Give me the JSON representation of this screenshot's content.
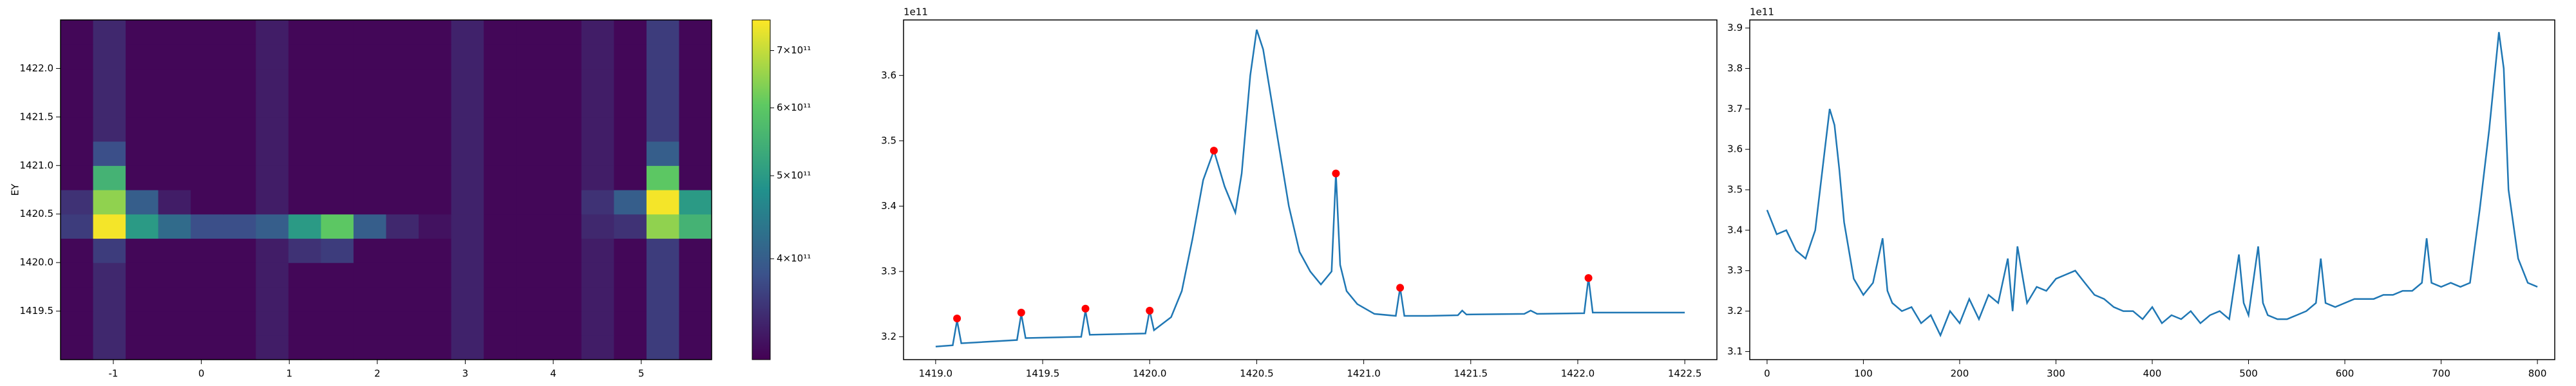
{
  "chart_data": [
    {
      "type": "heatmap",
      "ylabel": "EY",
      "xlim": [
        -1.6,
        5.8
      ],
      "ylim": [
        1419.0,
        1422.5
      ],
      "xticks": [
        -1,
        0,
        1,
        2,
        3,
        4,
        5
      ],
      "yticks": [
        1419.5,
        {
          "value": 1420,
          "label": "1420.0"
        },
        1420.5,
        {
          "value": 1421,
          "label": "1421.0"
        },
        1421.5,
        {
          "value": 1422,
          "label": "1422.0"
        }
      ],
      "cmap": "viridis",
      "colorbar": {
        "log": true,
        "lim": [
          305000000000.0,
          760000000000.0
        ],
        "ticks": [
          {
            "value": 400000000000.0,
            "label": "4×10¹¹"
          },
          {
            "value": 500000000000.0,
            "label": "5×10¹¹"
          },
          {
            "value": 600000000000.0,
            "label": "6×10¹¹"
          },
          {
            "value": 700000000000.0,
            "label": "7×10¹¹"
          }
        ]
      },
      "z": [
        [
          310000000000.0,
          340000000000.0,
          310000000000.0,
          310000000000.0,
          310000000000.0,
          310000000000.0,
          330000000000.0,
          310000000000.0,
          310000000000.0,
          310000000000.0,
          310000000000.0,
          310000000000.0,
          335000000000.0,
          310000000000.0,
          310000000000.0,
          310000000000.0,
          330000000000.0,
          310000000000.0,
          360000000000.0,
          310000000000.0
        ],
        [
          310000000000.0,
          340000000000.0,
          310000000000.0,
          310000000000.0,
          310000000000.0,
          310000000000.0,
          330000000000.0,
          310000000000.0,
          310000000000.0,
          310000000000.0,
          310000000000.0,
          310000000000.0,
          335000000000.0,
          310000000000.0,
          310000000000.0,
          310000000000.0,
          330000000000.0,
          310000000000.0,
          360000000000.0,
          310000000000.0
        ],
        [
          310000000000.0,
          340000000000.0,
          310000000000.0,
          310000000000.0,
          310000000000.0,
          310000000000.0,
          330000000000.0,
          310000000000.0,
          310000000000.0,
          310000000000.0,
          310000000000.0,
          310000000000.0,
          335000000000.0,
          310000000000.0,
          310000000000.0,
          310000000000.0,
          330000000000.0,
          310000000000.0,
          360000000000.0,
          310000000000.0
        ],
        [
          310000000000.0,
          340000000000.0,
          310000000000.0,
          310000000000.0,
          310000000000.0,
          310000000000.0,
          330000000000.0,
          310000000000.0,
          310000000000.0,
          310000000000.0,
          310000000000.0,
          310000000000.0,
          335000000000.0,
          310000000000.0,
          310000000000.0,
          310000000000.0,
          330000000000.0,
          310000000000.0,
          360000000000.0,
          310000000000.0
        ],
        [
          310000000000.0,
          360000000000.0,
          310000000000.0,
          310000000000.0,
          310000000000.0,
          310000000000.0,
          330000000000.0,
          350000000000.0,
          360000000000.0,
          310000000000.0,
          310000000000.0,
          310000000000.0,
          335000000000.0,
          310000000000.0,
          310000000000.0,
          310000000000.0,
          330000000000.0,
          310000000000.0,
          360000000000.0,
          310000000000.0
        ],
        [
          360000000000.0,
          750000000000.0,
          500000000000.0,
          420000000000.0,
          380000000000.0,
          380000000000.0,
          400000000000.0,
          500000000000.0,
          600000000000.0,
          400000000000.0,
          340000000000.0,
          320000000000.0,
          335000000000.0,
          310000000000.0,
          310000000000.0,
          310000000000.0,
          340000000000.0,
          350000000000.0,
          650000000000.0,
          550000000000.0
        ],
        [
          350000000000.0,
          650000000000.0,
          400000000000.0,
          330000000000.0,
          310000000000.0,
          310000000000.0,
          330000000000.0,
          310000000000.0,
          310000000000.0,
          310000000000.0,
          310000000000.0,
          310000000000.0,
          335000000000.0,
          310000000000.0,
          310000000000.0,
          310000000000.0,
          350000000000.0,
          400000000000.0,
          750000000000.0,
          500000000000.0
        ],
        [
          310000000000.0,
          550000000000.0,
          310000000000.0,
          310000000000.0,
          310000000000.0,
          310000000000.0,
          330000000000.0,
          310000000000.0,
          310000000000.0,
          310000000000.0,
          310000000000.0,
          310000000000.0,
          335000000000.0,
          310000000000.0,
          310000000000.0,
          310000000000.0,
          330000000000.0,
          310000000000.0,
          600000000000.0,
          310000000000.0
        ],
        [
          310000000000.0,
          380000000000.0,
          310000000000.0,
          310000000000.0,
          310000000000.0,
          310000000000.0,
          330000000000.0,
          310000000000.0,
          310000000000.0,
          310000000000.0,
          310000000000.0,
          310000000000.0,
          335000000000.0,
          310000000000.0,
          310000000000.0,
          310000000000.0,
          330000000000.0,
          310000000000.0,
          400000000000.0,
          310000000000.0
        ],
        [
          310000000000.0,
          340000000000.0,
          310000000000.0,
          310000000000.0,
          310000000000.0,
          310000000000.0,
          330000000000.0,
          310000000000.0,
          310000000000.0,
          310000000000.0,
          310000000000.0,
          310000000000.0,
          335000000000.0,
          310000000000.0,
          310000000000.0,
          310000000000.0,
          330000000000.0,
          310000000000.0,
          360000000000.0,
          310000000000.0
        ],
        [
          310000000000.0,
          340000000000.0,
          310000000000.0,
          310000000000.0,
          310000000000.0,
          310000000000.0,
          330000000000.0,
          310000000000.0,
          310000000000.0,
          310000000000.0,
          310000000000.0,
          310000000000.0,
          335000000000.0,
          310000000000.0,
          310000000000.0,
          310000000000.0,
          330000000000.0,
          310000000000.0,
          360000000000.0,
          310000000000.0
        ],
        [
          310000000000.0,
          340000000000.0,
          310000000000.0,
          310000000000.0,
          310000000000.0,
          310000000000.0,
          330000000000.0,
          310000000000.0,
          310000000000.0,
          310000000000.0,
          310000000000.0,
          310000000000.0,
          335000000000.0,
          310000000000.0,
          310000000000.0,
          310000000000.0,
          330000000000.0,
          310000000000.0,
          360000000000.0,
          310000000000.0
        ],
        [
          310000000000.0,
          340000000000.0,
          310000000000.0,
          310000000000.0,
          310000000000.0,
          310000000000.0,
          330000000000.0,
          310000000000.0,
          310000000000.0,
          310000000000.0,
          310000000000.0,
          310000000000.0,
          335000000000.0,
          310000000000.0,
          310000000000.0,
          310000000000.0,
          330000000000.0,
          310000000000.0,
          360000000000.0,
          310000000000.0
        ],
        [
          310000000000.0,
          340000000000.0,
          310000000000.0,
          310000000000.0,
          310000000000.0,
          310000000000.0,
          330000000000.0,
          310000000000.0,
          310000000000.0,
          310000000000.0,
          310000000000.0,
          310000000000.0,
          335000000000.0,
          310000000000.0,
          310000000000.0,
          310000000000.0,
          330000000000.0,
          310000000000.0,
          360000000000.0,
          310000000000.0
        ]
      ]
    },
    {
      "type": "line",
      "offset_label": "1e11",
      "xlim": [
        1418.85,
        1422.65
      ],
      "ylim": [
        3.165,
        3.685
      ],
      "xticks": [
        {
          "value": 1419,
          "label": "1419.0"
        },
        1419.5,
        {
          "value": 1420,
          "label": "1420.0"
        },
        1420.5,
        {
          "value": 1421,
          "label": "1421.0"
        },
        1421.5,
        {
          "value": 1422,
          "label": "1422.0"
        },
        1422.5
      ],
      "yticks": [
        3.2,
        3.3,
        3.4,
        3.5,
        3.6
      ],
      "x": [
        1419.0,
        1419.08,
        1419.1,
        1419.12,
        1419.38,
        1419.4,
        1419.42,
        1419.68,
        1419.7,
        1419.72,
        1419.98,
        1420.0,
        1420.02,
        1420.1,
        1420.15,
        1420.2,
        1420.25,
        1420.3,
        1420.35,
        1420.4,
        1420.43,
        1420.47,
        1420.5,
        1420.53,
        1420.57,
        1420.6,
        1420.65,
        1420.7,
        1420.75,
        1420.8,
        1420.85,
        1420.87,
        1420.89,
        1420.92,
        1420.97,
        1421.05,
        1421.15,
        1421.17,
        1421.19,
        1421.3,
        1421.44,
        1421.46,
        1421.48,
        1421.75,
        1421.78,
        1421.81,
        1422.03,
        1422.05,
        1422.07,
        1422.5
      ],
      "series": [
        {
          "color": "#1f77b4",
          "values": [
            3.185,
            3.187,
            3.225,
            3.19,
            3.195,
            3.235,
            3.198,
            3.2,
            3.24,
            3.203,
            3.205,
            3.24,
            3.21,
            3.23,
            3.27,
            3.35,
            3.44,
            3.485,
            3.43,
            3.39,
            3.45,
            3.6,
            3.67,
            3.64,
            3.56,
            3.5,
            3.4,
            3.33,
            3.3,
            3.28,
            3.3,
            3.45,
            3.31,
            3.27,
            3.25,
            3.235,
            3.232,
            3.275,
            3.232,
            3.232,
            3.233,
            3.24,
            3.234,
            3.235,
            3.24,
            3.235,
            3.236,
            3.29,
            3.237,
            3.237
          ]
        }
      ],
      "peaks": {
        "color": "#ff0000",
        "x": [
          1419.1,
          1419.4,
          1419.7,
          1420.0,
          1420.3,
          1420.87,
          1421.17,
          1422.05
        ],
        "values": [
          3.228,
          3.237,
          3.243,
          3.24,
          3.485,
          3.45,
          3.275,
          3.29
        ]
      }
    },
    {
      "type": "line",
      "offset_label": "1e11",
      "xlim": [
        -18,
        818
      ],
      "ylim": [
        3.08,
        3.92
      ],
      "xticks": [
        0,
        100,
        200,
        300,
        400,
        500,
        600,
        700,
        800
      ],
      "yticks": [
        3.1,
        3.2,
        3.3,
        3.4,
        3.5,
        3.6,
        3.7,
        3.8,
        3.9
      ],
      "x": [
        0,
        10,
        20,
        30,
        40,
        50,
        60,
        65,
        70,
        75,
        80,
        90,
        100,
        110,
        120,
        125,
        130,
        140,
        150,
        160,
        170,
        180,
        190,
        200,
        210,
        220,
        230,
        240,
        250,
        255,
        260,
        270,
        280,
        290,
        300,
        310,
        320,
        330,
        340,
        350,
        360,
        370,
        380,
        390,
        400,
        410,
        420,
        430,
        440,
        450,
        460,
        470,
        480,
        490,
        495,
        500,
        510,
        515,
        520,
        530,
        540,
        550,
        560,
        570,
        575,
        580,
        590,
        600,
        610,
        620,
        630,
        640,
        650,
        660,
        670,
        680,
        685,
        690,
        700,
        710,
        720,
        730,
        740,
        750,
        760,
        765,
        770,
        780,
        790,
        800
      ],
      "series": [
        {
          "color": "#1f77b4",
          "values": [
            3.45,
            3.39,
            3.4,
            3.35,
            3.33,
            3.4,
            3.6,
            3.7,
            3.66,
            3.55,
            3.42,
            3.28,
            3.24,
            3.27,
            3.38,
            3.25,
            3.22,
            3.2,
            3.21,
            3.17,
            3.19,
            3.14,
            3.2,
            3.17,
            3.23,
            3.18,
            3.24,
            3.22,
            3.33,
            3.2,
            3.36,
            3.22,
            3.26,
            3.25,
            3.28,
            3.29,
            3.3,
            3.27,
            3.24,
            3.23,
            3.21,
            3.2,
            3.2,
            3.18,
            3.21,
            3.17,
            3.19,
            3.18,
            3.2,
            3.17,
            3.19,
            3.2,
            3.18,
            3.34,
            3.22,
            3.19,
            3.36,
            3.22,
            3.19,
            3.18,
            3.18,
            3.19,
            3.2,
            3.22,
            3.33,
            3.22,
            3.21,
            3.22,
            3.23,
            3.23,
            3.23,
            3.24,
            3.24,
            3.25,
            3.25,
            3.27,
            3.38,
            3.27,
            3.26,
            3.27,
            3.26,
            3.27,
            3.45,
            3.65,
            3.89,
            3.8,
            3.5,
            3.33,
            3.27,
            3.26
          ]
        }
      ]
    }
  ]
}
